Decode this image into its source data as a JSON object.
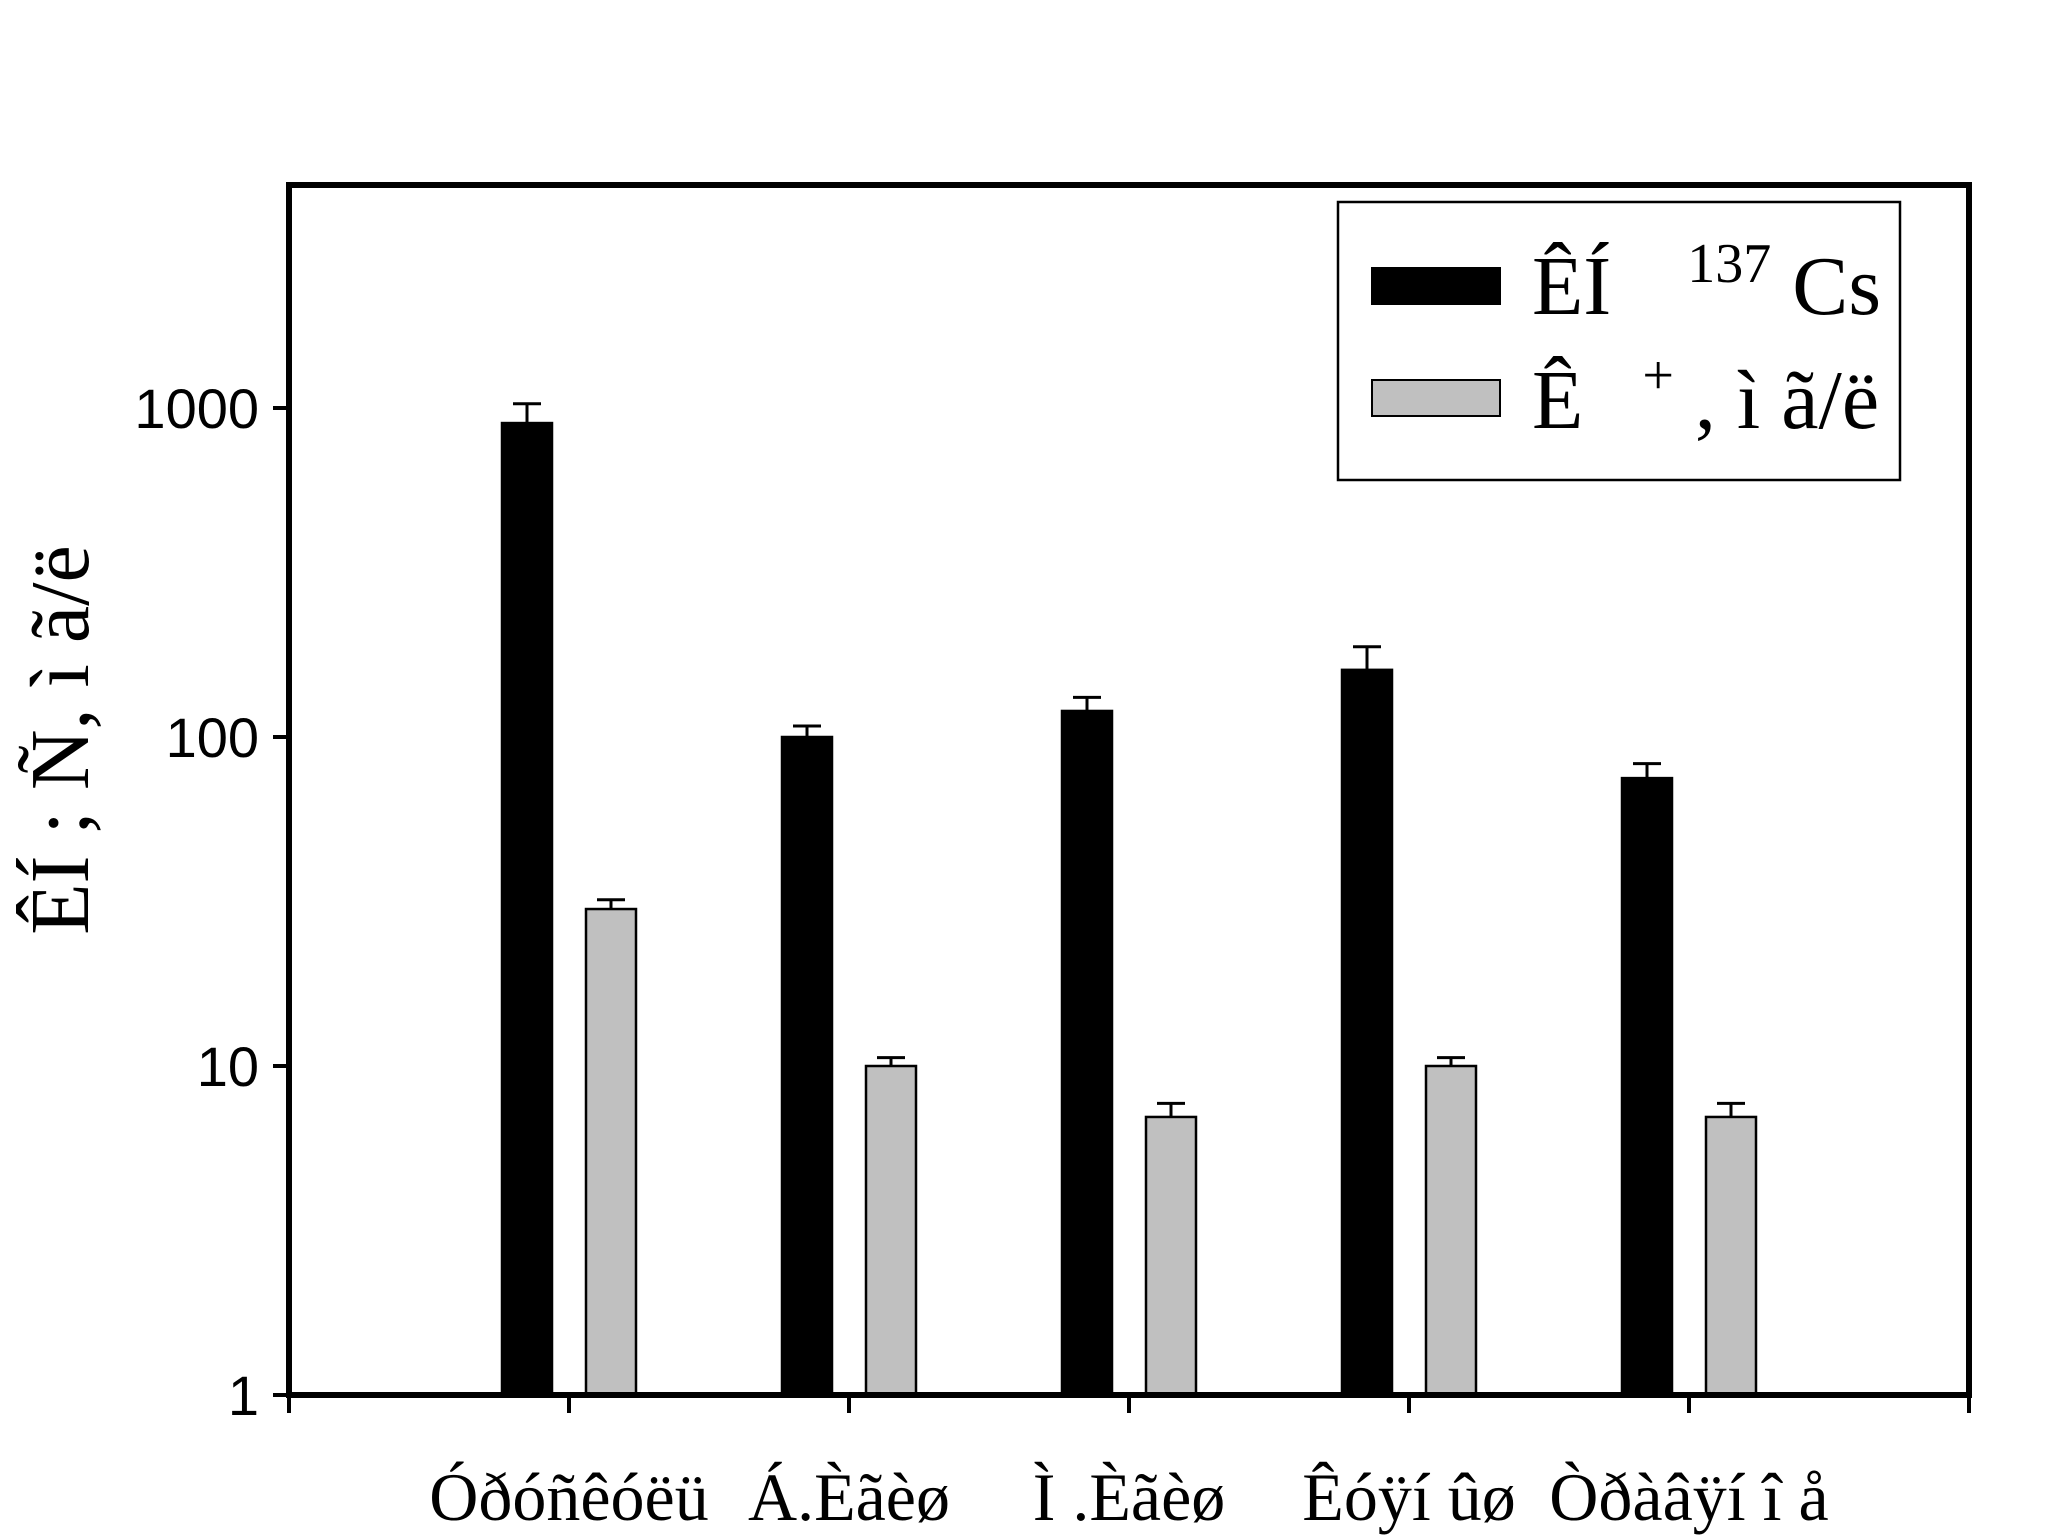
{
  "chart_data": {
    "type": "bar",
    "ylabel": "ÊÍ ; Ñ, ì ã/ë",
    "yscale": "log",
    "ylim": [
      1,
      5000
    ],
    "ytick_labels": [
      "1",
      "10",
      "100",
      "1000"
    ],
    "categories": [
      "Óðóñêóëü",
      "Á.Èãèø",
      "Ì .Èãèø",
      "Êóÿí ûø",
      "Òðàâÿí î å"
    ],
    "series": [
      {
        "name": "ÊÍ 137Cs",
        "legend_main": "ÊÍ",
        "legend_sup": "137",
        "legend_tail": "Cs",
        "values": [
          900,
          100,
          120,
          160,
          75
        ],
        "errors": [
          130,
          8,
          12,
          28,
          8
        ],
        "color": "#000000"
      },
      {
        "name": "Ê +, ì ã/ë",
        "legend_main": "Ê",
        "legend_sup": "+",
        "legend_tail": ", ì ã/ë",
        "values": [
          30,
          10,
          7,
          10,
          7
        ],
        "errors": [
          2,
          0.6,
          0.7,
          0.6,
          0.7
        ],
        "color": "#c0c0c0"
      }
    ],
    "legend_position": "top-right",
    "grid": false
  }
}
